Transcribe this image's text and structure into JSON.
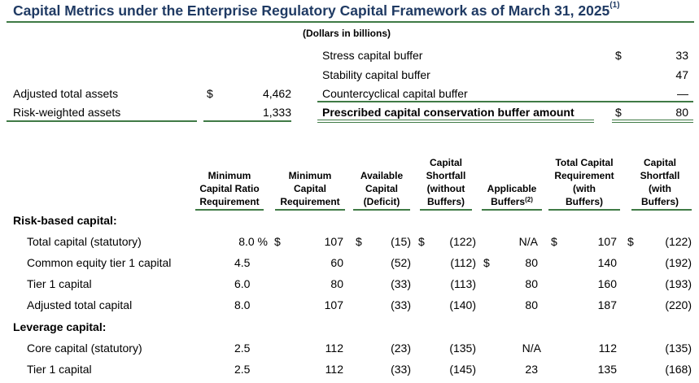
{
  "title": {
    "text": "Capital Metrics under the Enterprise Regulatory Capital Framework as of March 31, 2025",
    "note": "(1)"
  },
  "units": "(Dollars in billions)",
  "assets": [
    {
      "label": "Adjusted total assets",
      "currency": "$",
      "value": "4,462"
    },
    {
      "label": "Risk-weighted assets",
      "currency": "",
      "value": "1,333"
    }
  ],
  "buffers": [
    {
      "label": "Stress capital buffer",
      "currency": "$",
      "value": "33",
      "bold": false
    },
    {
      "label": "Stability capital buffer",
      "currency": "",
      "value": "47",
      "bold": false
    },
    {
      "label": "Countercyclical capital buffer",
      "currency": "",
      "value": "—",
      "bold": false
    },
    {
      "label": "Prescribed capital conservation buffer amount",
      "currency": "$",
      "value": "80",
      "bold": true
    }
  ],
  "columns": [
    {
      "lines": [
        "Minimum",
        "Capital Ratio",
        "Requirement"
      ]
    },
    {
      "lines": [
        "Minimum",
        "Capital",
        "Requirement"
      ]
    },
    {
      "lines": [
        "Available",
        "Capital",
        "(Deficit)"
      ]
    },
    {
      "lines": [
        "Capital",
        "Shortfall",
        "(without",
        "Buffers)"
      ]
    },
    {
      "lines": [
        "Applicable",
        "Buffers"
      ],
      "note": "(2)"
    },
    {
      "lines": [
        "Total Capital",
        "Requirement",
        "(with",
        "Buffers)"
      ]
    },
    {
      "lines": [
        "Capital",
        "Shortfall",
        "(with",
        "Buffers)"
      ]
    }
  ],
  "sections": [
    {
      "heading": "Risk-based capital:",
      "rows": [
        {
          "label": "Total capital (statutory)",
          "ratio": "8.0 %",
          "c1": "$",
          "min": "107",
          "c2": "$",
          "avail": "(15)",
          "c3": "$",
          "sw": "(122)",
          "c4": "",
          "buf": "N/A",
          "c5": "$",
          "tot": "107",
          "c6": "$",
          "swb": "(122)"
        },
        {
          "label": "Common equity tier 1 capital",
          "ratio": "4.5",
          "c1": "",
          "min": "60",
          "c2": "",
          "avail": "(52)",
          "c3": "",
          "sw": "(112)",
          "c4": "$",
          "buf": "80",
          "c5": "",
          "tot": "140",
          "c6": "",
          "swb": "(192)"
        },
        {
          "label": "Tier 1 capital",
          "ratio": "6.0",
          "c1": "",
          "min": "80",
          "c2": "",
          "avail": "(33)",
          "c3": "",
          "sw": "(113)",
          "c4": "",
          "buf": "80",
          "c5": "",
          "tot": "160",
          "c6": "",
          "swb": "(193)"
        },
        {
          "label": "Adjusted total capital",
          "ratio": "8.0",
          "c1": "",
          "min": "107",
          "c2": "",
          "avail": "(33)",
          "c3": "",
          "sw": "(140)",
          "c4": "",
          "buf": "80",
          "c5": "",
          "tot": "187",
          "c6": "",
          "swb": "(220)"
        }
      ]
    },
    {
      "heading": "Leverage capital:",
      "rows": [
        {
          "label": "Core capital (statutory)",
          "ratio": "2.5",
          "c1": "",
          "min": "112",
          "c2": "",
          "avail": "(23)",
          "c3": "",
          "sw": "(135)",
          "c4": "",
          "buf": "N/A",
          "c5": "",
          "tot": "112",
          "c6": "",
          "swb": "(135)"
        },
        {
          "label": "Tier 1 capital",
          "ratio": "2.5",
          "c1": "",
          "min": "112",
          "c2": "",
          "avail": "(33)",
          "c3": "",
          "sw": "(145)",
          "c4": "",
          "buf": "23",
          "c5": "",
          "tot": "135",
          "c6": "",
          "swb": "(168)"
        }
      ]
    }
  ]
}
